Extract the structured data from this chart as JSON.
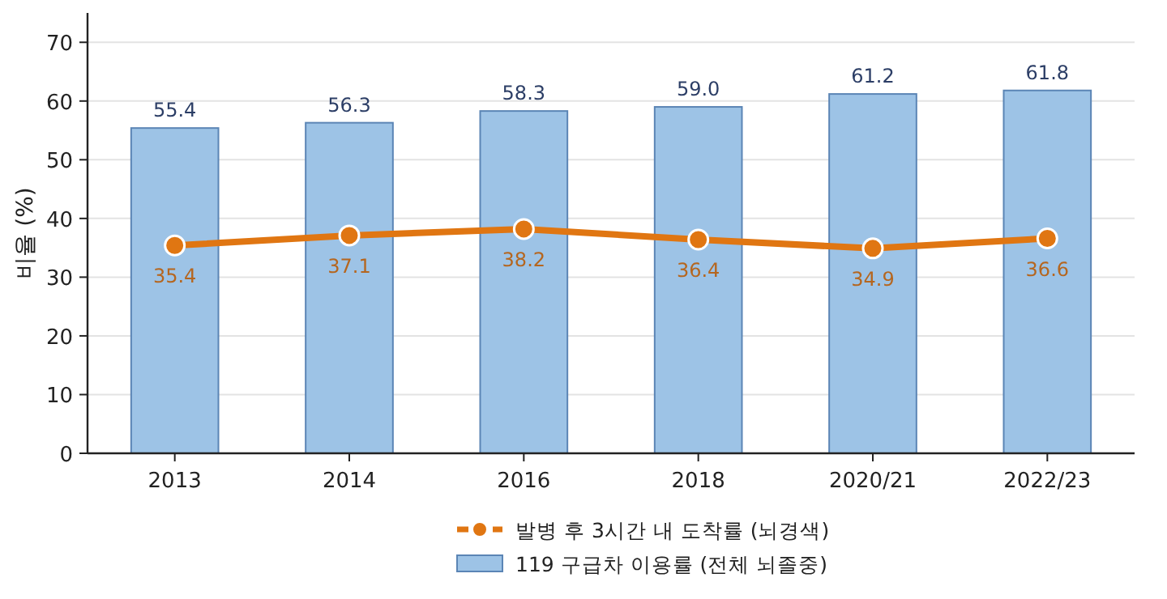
{
  "chart_data": {
    "type": "bar",
    "ylabel": "비율 (%)",
    "categories": [
      "2013",
      "2014",
      "2016",
      "2018",
      "2020/21",
      "2022/23"
    ],
    "series": [
      {
        "name": "발병 후 3시간 내 도착률 (뇌경색)",
        "type": "line",
        "color": "#e07612",
        "marker": "circle",
        "line_style": "solid",
        "values": [
          35.4,
          37.1,
          38.2,
          36.4,
          34.9,
          36.6
        ],
        "value_labels": [
          "35.4",
          "37.1",
          "38.2",
          "36.4",
          "34.9",
          "36.6"
        ]
      },
      {
        "name": "119 구급차 이용률 (전체 뇌졸중)",
        "color": "#9dc3e6",
        "values": [
          55.4,
          56.3,
          58.3,
          59.0,
          61.2,
          61.8
        ],
        "value_labels": [
          "55.4",
          "56.3",
          "58.3",
          "59.0",
          "61.2",
          "61.8"
        ]
      }
    ],
    "ylim": [
      0,
      75
    ],
    "yticks": [
      0,
      10,
      20,
      30,
      40,
      50,
      60,
      70
    ],
    "grid": "y",
    "legend": "bottom"
  }
}
